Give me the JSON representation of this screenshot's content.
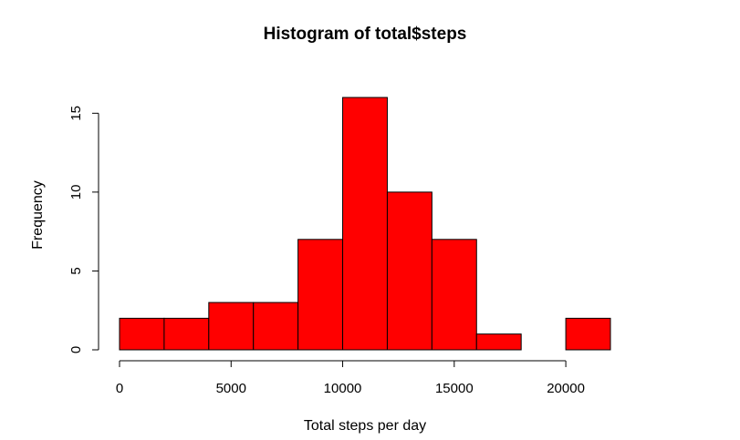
{
  "chart_data": {
    "type": "bar",
    "title": "Histogram of total$steps",
    "xlabel": "Total steps per day",
    "ylabel": "Frequency",
    "bin_edges": [
      0,
      2000,
      4000,
      6000,
      8000,
      10000,
      12000,
      14000,
      16000,
      18000,
      20000,
      22000
    ],
    "values": [
      2,
      2,
      3,
      3,
      7,
      16,
      10,
      7,
      1,
      0,
      2
    ],
    "xlim": [
      0,
      22000
    ],
    "ylim": [
      0,
      16
    ],
    "x_ticks": [
      0,
      5000,
      10000,
      15000,
      20000
    ],
    "x_tick_labels": [
      "0",
      "5000",
      "10000",
      "15000",
      "20000"
    ],
    "y_ticks": [
      0,
      5,
      10,
      15
    ],
    "y_tick_labels": [
      "0",
      "5",
      "10",
      "15"
    ],
    "bar_color": "#ff0000",
    "grid": false,
    "legend": "none"
  }
}
